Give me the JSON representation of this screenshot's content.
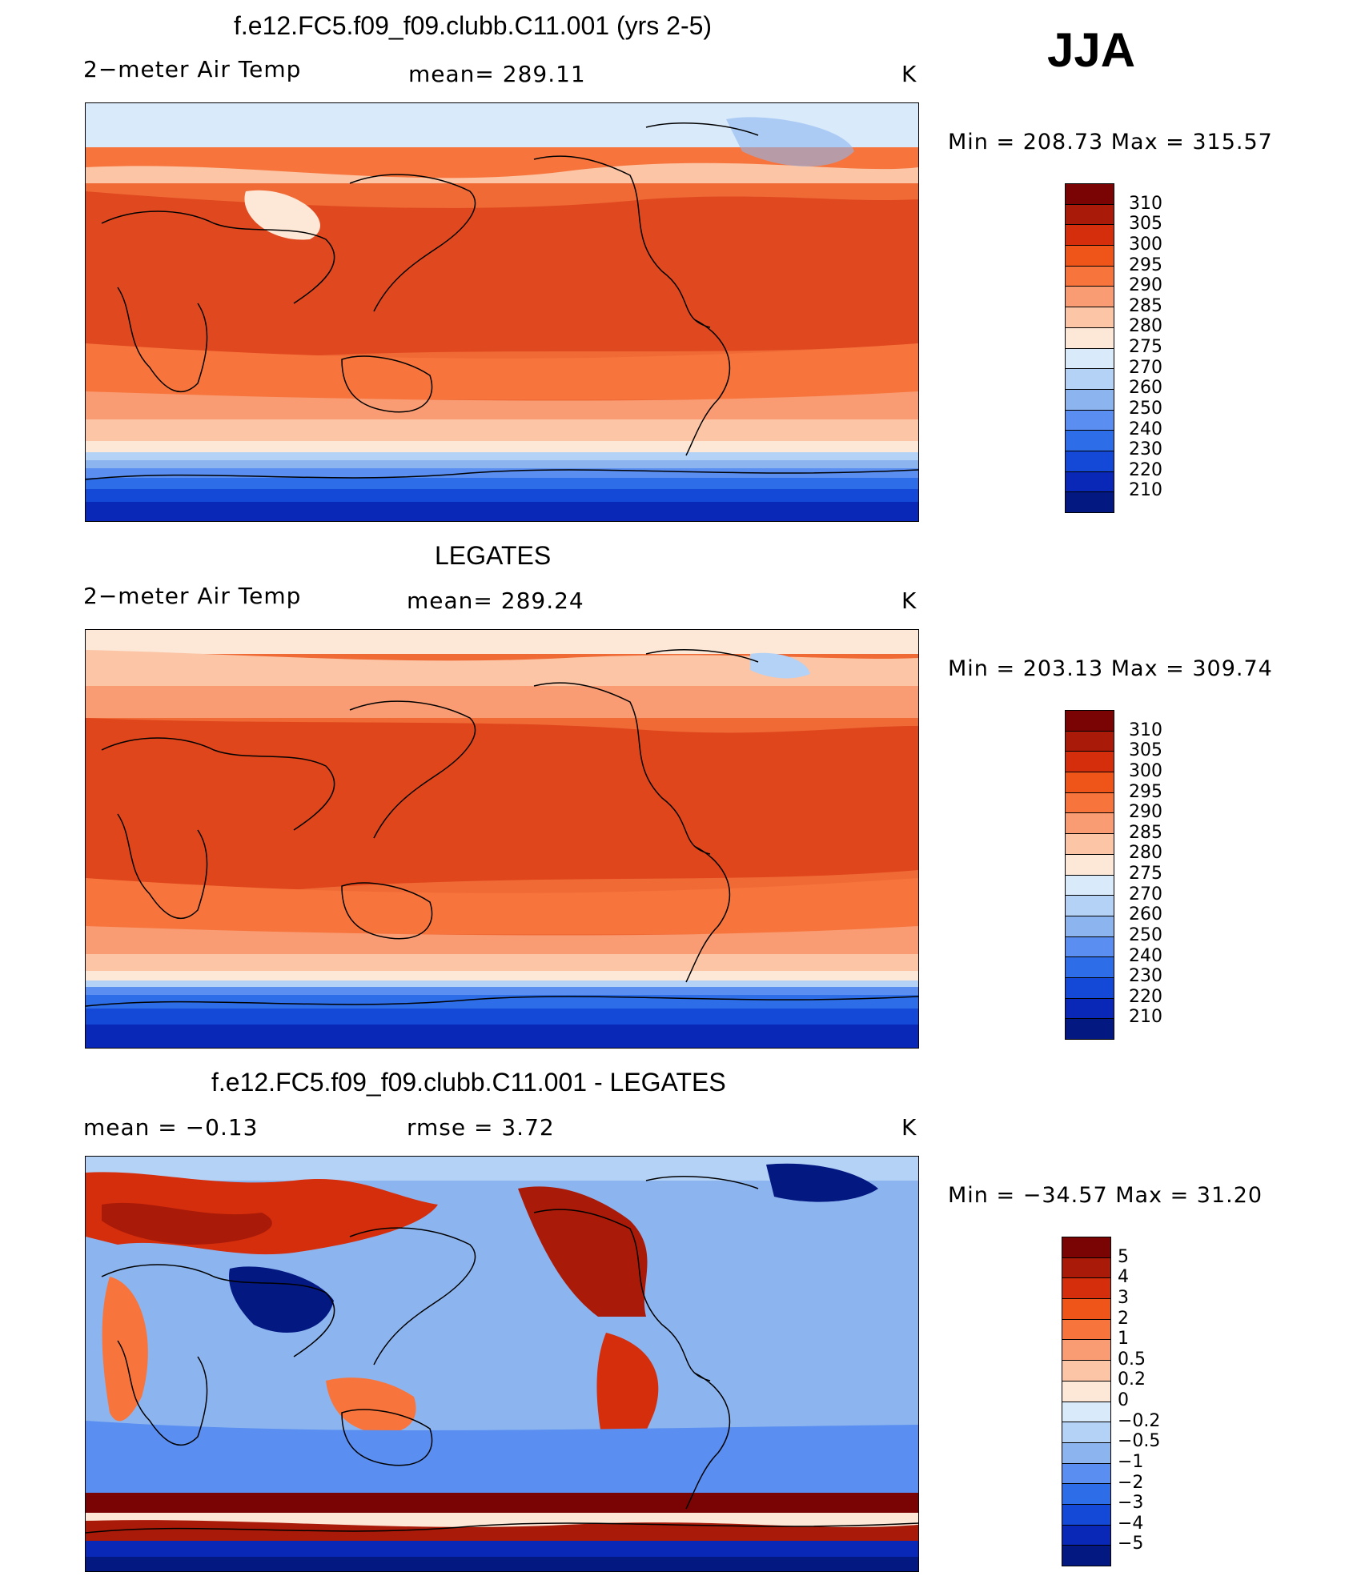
{
  "season": "JJA",
  "panels": [
    {
      "title": "f.e12.FC5.f09_f09.clubb.C11.001 (yrs 2-5)",
      "variable": "2−meter Air Temp",
      "center": "mean=  289.11",
      "units": "K",
      "minmax": "Min  =  208.73  Max  =  315.57",
      "colorbar_labels": [
        "310",
        "305",
        "300",
        "295",
        "290",
        "285",
        "280",
        "275",
        "270",
        "260",
        "250",
        "240",
        "230",
        "220",
        "210"
      ],
      "colors": [
        "#7a0403",
        "#a91a08",
        "#d42e0c",
        "#ef5418",
        "#f7753d",
        "#f99c74",
        "#fbc5a6",
        "#fde7d6",
        "#d9eafa",
        "#b4d2f6",
        "#8cb5f0",
        "#5a8ef0",
        "#2d6ee8",
        "#1448d6",
        "#0a28b8",
        "#041882"
      ]
    },
    {
      "title": "LEGATES",
      "variable": "2−meter Air Temp",
      "center": "mean=  289.24",
      "units": "K",
      "minmax": "Min  =  203.13  Max  =  309.74",
      "colorbar_labels": [
        "310",
        "305",
        "300",
        "295",
        "290",
        "285",
        "280",
        "275",
        "270",
        "260",
        "250",
        "240",
        "230",
        "220",
        "210"
      ],
      "colors": [
        "#7a0403",
        "#a91a08",
        "#d42e0c",
        "#ef5418",
        "#f7753d",
        "#f99c74",
        "#fbc5a6",
        "#fde7d6",
        "#d9eafa",
        "#b4d2f6",
        "#8cb5f0",
        "#5a8ef0",
        "#2d6ee8",
        "#1448d6",
        "#0a28b8",
        "#041882"
      ]
    },
    {
      "title": "f.e12.FC5.f09_f09.clubb.C11.001 - LEGATES",
      "variable": "mean  =    −0.13",
      "center": "rmse  =     3.72",
      "units": "K",
      "minmax": "Min  =  −34.57  Max  =    31.20",
      "colorbar_labels": [
        "5",
        "4",
        "3",
        "2",
        "1",
        "0.5",
        "0.2",
        "0",
        "−0.2",
        "−0.5",
        "−1",
        "−2",
        "−3",
        "−4",
        "−5"
      ],
      "colors": [
        "#7a0403",
        "#a91a08",
        "#d42e0c",
        "#ef5418",
        "#f7753d",
        "#f99c74",
        "#fbc5a6",
        "#fde7d6",
        "#d9eafa",
        "#b4d2f6",
        "#8cb5f0",
        "#5a8ef0",
        "#2d6ee8",
        "#1448d6",
        "#0a28b8",
        "#041882"
      ]
    }
  ]
}
